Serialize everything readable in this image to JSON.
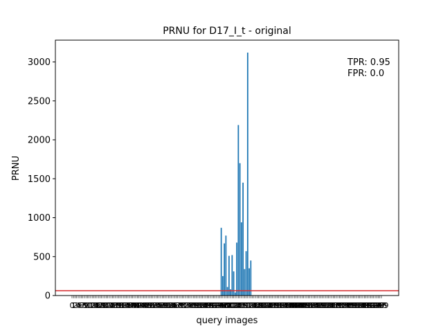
{
  "chart_data": {
    "type": "bar",
    "title": "PRNU for D17_I_t - original",
    "xlabel": "query images",
    "ylabel": "PRNU",
    "ylim": [
      0,
      3280
    ],
    "yticks": [
      0,
      500,
      1000,
      1500,
      2000,
      2500,
      3000
    ],
    "x_count": 200,
    "bar_color": "#1f77b4",
    "threshold": {
      "value": 62,
      "color": "#d62728"
    },
    "annotations": [
      "TPR: 0.95",
      "FPR: 0.0"
    ],
    "values": [
      0,
      0,
      0,
      0,
      0,
      0,
      0,
      0,
      0,
      0,
      0,
      0,
      0,
      0,
      0,
      0,
      0,
      0,
      0,
      0,
      0,
      0,
      0,
      0,
      0,
      0,
      0,
      0,
      0,
      0,
      0,
      0,
      0,
      0,
      0,
      0,
      0,
      0,
      0,
      0,
      0,
      0,
      0,
      0,
      0,
      0,
      0,
      0,
      0,
      0,
      0,
      0,
      0,
      0,
      0,
      0,
      0,
      0,
      0,
      0,
      0,
      0,
      0,
      0,
      0,
      0,
      0,
      0,
      0,
      0,
      0,
      0,
      0,
      0,
      0,
      0,
      0,
      0,
      0,
      0,
      0,
      0,
      0,
      0,
      0,
      0,
      0,
      0,
      0,
      0,
      0,
      0,
      0,
      0,
      0,
      0,
      870,
      250,
      670,
      770,
      110,
      510,
      80,
      520,
      310,
      40,
      680,
      2190,
      1700,
      940,
      1450,
      340,
      570,
      3120,
      350,
      450,
      0,
      0,
      0,
      0,
      0,
      0,
      0,
      0,
      0,
      0,
      0,
      0,
      0,
      0,
      0,
      0,
      0,
      0,
      0,
      0,
      0,
      0,
      0,
      0,
      0,
      0,
      0,
      0,
      0,
      0,
      0,
      0,
      0,
      0,
      0,
      0,
      0,
      0,
      0,
      0,
      0,
      0,
      0,
      0,
      0,
      0,
      0,
      0,
      0,
      0,
      0,
      0,
      0,
      0,
      0,
      0,
      0,
      0,
      0,
      0,
      0,
      0,
      0,
      0,
      0,
      0,
      0,
      0,
      0,
      0,
      0,
      0,
      0,
      0,
      0,
      0,
      0,
      0,
      0,
      0
    ]
  }
}
